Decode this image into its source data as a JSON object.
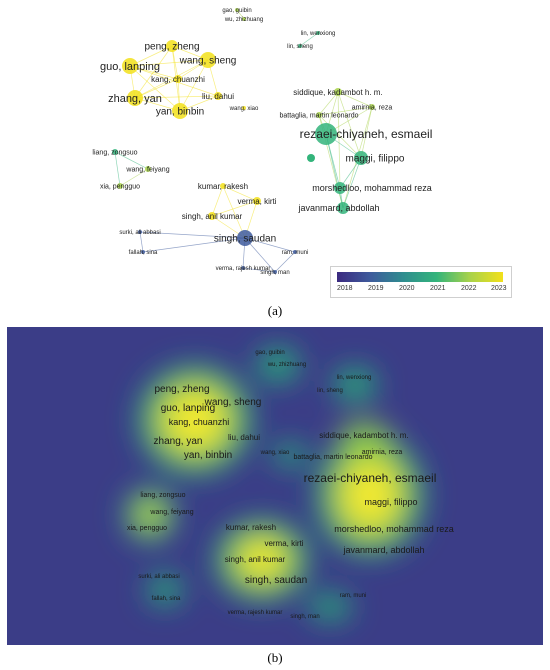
{
  "panel_a": {
    "caption": "(a)",
    "legend": {
      "years": [
        "2018",
        "2019",
        "2020",
        "2021",
        "2022",
        "2023"
      ],
      "colors": [
        "#3b2a80",
        "#3e5b9c",
        "#2f8d8f",
        "#33b47b",
        "#a8d24a",
        "#f2e01a"
      ]
    },
    "nodes": [
      {
        "id": "gao",
        "label": "gao, guibin",
        "year": 2022
      },
      {
        "id": "wu",
        "label": "wu, zhizhuang",
        "year": 2022
      },
      {
        "id": "linw",
        "label": "lin, wenxiong",
        "year": 2021
      },
      {
        "id": "lins",
        "label": "lin, sheng",
        "year": 2021
      },
      {
        "id": "peng",
        "label": "peng, zheng",
        "year": 2023
      },
      {
        "id": "guo",
        "label": "guo, lanping",
        "year": 2023
      },
      {
        "id": "wangs",
        "label": "wang, sheng",
        "year": 2023
      },
      {
        "id": "kang",
        "label": "kang, chuanzhi",
        "year": 2023
      },
      {
        "id": "liu",
        "label": "liu, dahui",
        "year": 2023
      },
      {
        "id": "zhang",
        "label": "zhang, yan",
        "year": 2023
      },
      {
        "id": "yan",
        "label": "yan, binbin",
        "year": 2023
      },
      {
        "id": "wangx",
        "label": "wang, xiao",
        "year": 2023
      },
      {
        "id": "siddique",
        "label": "siddique, kadambot h. m.",
        "year": 2022
      },
      {
        "id": "amirnia",
        "label": "amirnia, reza",
        "year": 2022
      },
      {
        "id": "battaglia",
        "label": "battaglia, martin leonardo",
        "year": 2022
      },
      {
        "id": "rezaei",
        "label": "rezaei-chiyaneh, esmaeil",
        "year": 2021
      },
      {
        "id": "maggi",
        "label": "maggi, filippo",
        "year": 2021
      },
      {
        "id": "morshedloo",
        "label": "morshedloo, mohammad reza",
        "year": 2021
      },
      {
        "id": "javanmard",
        "label": "javanmard, abdollah",
        "year": 2021
      },
      {
        "id": "liang",
        "label": "liang, zongsuo",
        "year": 2021
      },
      {
        "id": "wangf",
        "label": "wang, feiyang",
        "year": 2022
      },
      {
        "id": "xia",
        "label": "xia, pengguo",
        "year": 2022
      },
      {
        "id": "kumar",
        "label": "kumar, rakesh",
        "year": 2023
      },
      {
        "id": "verma",
        "label": "verma, kirti",
        "year": 2023
      },
      {
        "id": "singha",
        "label": "singh, anil kumar",
        "year": 2023
      },
      {
        "id": "singhs",
        "label": "singh, saudan",
        "year": 2019
      },
      {
        "id": "surki",
        "label": "surki, ali abbasi",
        "year": 2019
      },
      {
        "id": "fallah",
        "label": "fallah, sina",
        "year": 2019
      },
      {
        "id": "ram",
        "label": "ram, muni",
        "year": 2019
      },
      {
        "id": "vermar",
        "label": "verma, rajesh kumar",
        "year": 2019
      },
      {
        "id": "singhm",
        "label": "singh, man",
        "year": 2019
      }
    ],
    "edges": [
      [
        "gao",
        "wu"
      ],
      [
        "linw",
        "lins"
      ],
      [
        "peng",
        "guo"
      ],
      [
        "peng",
        "wangs"
      ],
      [
        "peng",
        "kang"
      ],
      [
        "peng",
        "zhang"
      ],
      [
        "peng",
        "yan"
      ],
      [
        "guo",
        "wangs"
      ],
      [
        "guo",
        "kang"
      ],
      [
        "guo",
        "zhang"
      ],
      [
        "guo",
        "yan"
      ],
      [
        "guo",
        "liu"
      ],
      [
        "wangs",
        "kang"
      ],
      [
        "wangs",
        "liu"
      ],
      [
        "wangs",
        "yan"
      ],
      [
        "wangs",
        "zhang"
      ],
      [
        "kang",
        "zhang"
      ],
      [
        "kang",
        "yan"
      ],
      [
        "zhang",
        "yan"
      ],
      [
        "yan",
        "liu"
      ],
      [
        "zhang",
        "liu"
      ],
      [
        "siddique",
        "rezaei"
      ],
      [
        "siddique",
        "amirnia"
      ],
      [
        "siddique",
        "battaglia"
      ],
      [
        "siddique",
        "maggi"
      ],
      [
        "siddique",
        "morshedloo"
      ],
      [
        "amirnia",
        "rezaei"
      ],
      [
        "amirnia",
        "battaglia"
      ],
      [
        "amirnia",
        "maggi"
      ],
      [
        "amirnia",
        "javanmard"
      ],
      [
        "battaglia",
        "rezaei"
      ],
      [
        "battaglia",
        "maggi"
      ],
      [
        "battaglia",
        "javanmard"
      ],
      [
        "rezaei",
        "maggi"
      ],
      [
        "rezaei",
        "morshedloo"
      ],
      [
        "rezaei",
        "javanmard"
      ],
      [
        "maggi",
        "morshedloo"
      ],
      [
        "maggi",
        "javanmard"
      ],
      [
        "morshedloo",
        "javanmard"
      ],
      [
        "liang",
        "wangf"
      ],
      [
        "liang",
        "xia"
      ],
      [
        "wangf",
        "xia"
      ],
      [
        "kumar",
        "verma"
      ],
      [
        "kumar",
        "singha"
      ],
      [
        "kumar",
        "singhs"
      ],
      [
        "verma",
        "singha"
      ],
      [
        "verma",
        "singhs"
      ],
      [
        "singha",
        "singhs"
      ],
      [
        "singhs",
        "surki"
      ],
      [
        "singhs",
        "fallah"
      ],
      [
        "singhs",
        "ram"
      ],
      [
        "singhs",
        "vermar"
      ],
      [
        "singhs",
        "singhm"
      ],
      [
        "surki",
        "fallah"
      ],
      [
        "ram",
        "singhm"
      ],
      [
        "vermar",
        "singhm"
      ]
    ]
  },
  "panel_b": {
    "caption": "(b)",
    "background": "#3b3d87",
    "labels": [
      "gao, guibin",
      "wu, zhizhuang",
      "lin, wenxiong",
      "lin, sheng",
      "peng, zheng",
      "guo, lanping",
      "wang, sheng",
      "kang, chuanzhi",
      "zhang, yan",
      "liu, dahui",
      "yan, binbin",
      "wang, xiao",
      "siddique, kadambot h. m.",
      "amirnia, reza",
      "battaglia, martin leonardo",
      "rezaei-chiyaneh, esmaeil",
      "maggi, filippo",
      "morshedloo, mohammad reza",
      "javanmard, abdollah",
      "liang, zongsuo",
      "wang, feiyang",
      "xia, pengguo",
      "kumar, rakesh",
      "verma, kirti",
      "singh, anil kumar",
      "singh, saudan",
      "surki, ali abbasi",
      "fallah, sina",
      "ram, muni",
      "verma, rajesh kumar",
      "singh, man"
    ]
  }
}
